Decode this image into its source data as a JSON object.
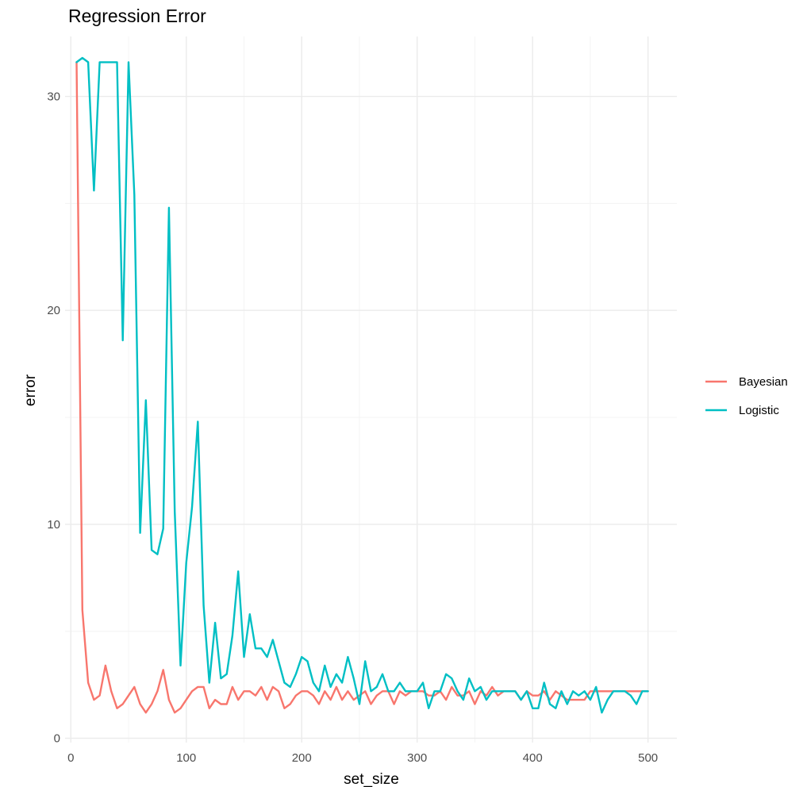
{
  "chart_data": {
    "type": "line",
    "title": "Regression Error",
    "xlabel": "set_size",
    "ylabel": "error",
    "xlim": [
      -5,
      525
    ],
    "ylim": [
      -0.2,
      32.8
    ],
    "x_ticks": [
      0,
      100,
      200,
      300,
      400,
      500
    ],
    "y_ticks": [
      0,
      10,
      20,
      30
    ],
    "grid": true,
    "legend_position": "right",
    "series": [
      {
        "name": "Bayesian",
        "color": "#F8766D",
        "x": [
          5,
          10,
          15,
          20,
          25,
          30,
          35,
          40,
          45,
          50,
          55,
          60,
          65,
          70,
          75,
          80,
          85,
          90,
          95,
          100,
          105,
          110,
          115,
          120,
          125,
          130,
          135,
          140,
          145,
          150,
          155,
          160,
          165,
          170,
          175,
          180,
          185,
          190,
          195,
          200,
          205,
          210,
          215,
          220,
          225,
          230,
          235,
          240,
          245,
          250,
          255,
          260,
          265,
          270,
          275,
          280,
          285,
          290,
          295,
          300,
          305,
          310,
          315,
          320,
          325,
          330,
          335,
          340,
          345,
          350,
          355,
          360,
          365,
          370,
          375,
          380,
          385,
          390,
          395,
          400,
          405,
          410,
          415,
          420,
          425,
          430,
          435,
          440,
          445,
          450,
          455,
          460,
          465,
          470,
          475,
          480,
          485,
          490,
          495,
          500
        ],
        "y": [
          31.6,
          6.0,
          2.6,
          1.8,
          2.0,
          3.4,
          2.2,
          1.4,
          1.6,
          2.0,
          2.4,
          1.6,
          1.2,
          1.6,
          2.2,
          3.2,
          1.8,
          1.2,
          1.4,
          1.8,
          2.2,
          2.4,
          2.4,
          1.4,
          1.8,
          1.6,
          1.6,
          2.4,
          1.8,
          2.2,
          2.2,
          2.0,
          2.4,
          1.8,
          2.4,
          2.2,
          1.4,
          1.6,
          2.0,
          2.2,
          2.2,
          2.0,
          1.6,
          2.2,
          1.8,
          2.4,
          1.8,
          2.2,
          1.8,
          2.0,
          2.2,
          1.6,
          2.0,
          2.2,
          2.2,
          1.6,
          2.2,
          2.0,
          2.2,
          2.2,
          2.2,
          2.0,
          2.0,
          2.2,
          1.8,
          2.4,
          2.0,
          2.0,
          2.2,
          1.6,
          2.2,
          2.0,
          2.4,
          2.0,
          2.2,
          2.2,
          2.2,
          1.8,
          2.2,
          2.0,
          2.0,
          2.2,
          1.8,
          2.2,
          2.0,
          1.8,
          1.8,
          1.8,
          1.8,
          2.2,
          2.2,
          2.2,
          2.2,
          2.2,
          2.2,
          2.2,
          2.2,
          2.2,
          2.2,
          2.2
        ]
      },
      {
        "name": "Logistic",
        "color": "#00BFC4",
        "x": [
          5,
          10,
          15,
          20,
          25,
          30,
          35,
          40,
          45,
          50,
          55,
          60,
          65,
          70,
          75,
          80,
          85,
          90,
          95,
          100,
          105,
          110,
          115,
          120,
          125,
          130,
          135,
          140,
          145,
          150,
          155,
          160,
          165,
          170,
          175,
          180,
          185,
          190,
          195,
          200,
          205,
          210,
          215,
          220,
          225,
          230,
          235,
          240,
          245,
          250,
          255,
          260,
          265,
          270,
          275,
          280,
          285,
          290,
          295,
          300,
          305,
          310,
          315,
          320,
          325,
          330,
          335,
          340,
          345,
          350,
          355,
          360,
          365,
          370,
          375,
          380,
          385,
          390,
          395,
          400,
          405,
          410,
          415,
          420,
          425,
          430,
          435,
          440,
          445,
          450,
          455,
          460,
          465,
          470,
          475,
          480,
          485,
          490,
          495,
          500
        ],
        "y": [
          31.6,
          31.8,
          31.6,
          25.6,
          31.6,
          31.6,
          31.6,
          31.6,
          18.6,
          31.6,
          25.4,
          9.6,
          15.8,
          8.8,
          8.6,
          9.8,
          24.8,
          10.6,
          3.4,
          8.2,
          10.8,
          14.8,
          6.2,
          2.6,
          5.4,
          2.8,
          3.0,
          4.8,
          7.8,
          3.8,
          5.8,
          4.2,
          4.2,
          3.8,
          4.6,
          3.6,
          2.6,
          2.4,
          3.0,
          3.8,
          3.6,
          2.6,
          2.2,
          3.4,
          2.4,
          3.0,
          2.6,
          3.8,
          2.8,
          1.6,
          3.6,
          2.2,
          2.4,
          3.0,
          2.2,
          2.2,
          2.6,
          2.2,
          2.2,
          2.2,
          2.6,
          1.4,
          2.2,
          2.2,
          3.0,
          2.8,
          2.2,
          1.8,
          2.8,
          2.2,
          2.4,
          1.8,
          2.2,
          2.2,
          2.2,
          2.2,
          2.2,
          1.8,
          2.2,
          1.4,
          1.4,
          2.6,
          1.6,
          1.4,
          2.2,
          1.6,
          2.2,
          2.0,
          2.2,
          1.8,
          2.4,
          1.2,
          1.8,
          2.2,
          2.2,
          2.2,
          2.0,
          1.6,
          2.2,
          2.2
        ]
      }
    ]
  }
}
